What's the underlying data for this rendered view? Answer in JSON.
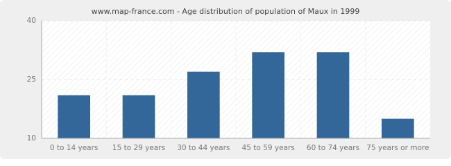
{
  "chart_data": {
    "type": "bar",
    "title": "www.map-france.com - Age distribution of population of Maux in 1999",
    "categories": [
      "0 to 14 years",
      "15 to 29 years",
      "30 to 44 years",
      "45 to 59 years",
      "60 to 74 years",
      "75 years or more"
    ],
    "values": [
      21,
      21,
      27,
      32,
      32,
      15
    ],
    "color": "#336699",
    "ylim": [
      10,
      40
    ],
    "yticks": [
      10,
      25,
      40
    ],
    "grid": true
  }
}
